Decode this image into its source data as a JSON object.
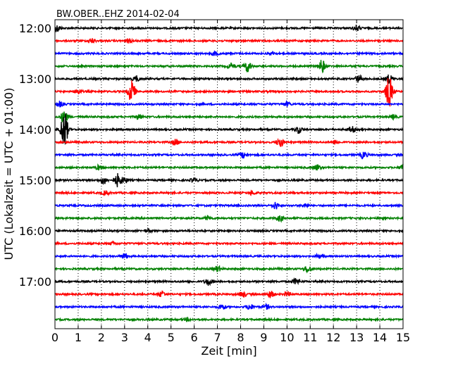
{
  "chart_data": {
    "type": "line",
    "title": "BW.OBER..EHZ 2014-02-04",
    "xlabel": "Zeit  [min]",
    "ylabel": "UTC (Lokalzeit = UTC + 01:00)",
    "xlim": [
      0,
      15
    ],
    "x_ticks": [
      0,
      1,
      2,
      3,
      4,
      5,
      6,
      7,
      8,
      9,
      10,
      11,
      12,
      13,
      14,
      15
    ],
    "y_ticks": [
      "12:00",
      "13:00",
      "14:00",
      "15:00",
      "16:00",
      "17:00"
    ],
    "grid": "vertical dotted lines at each minute",
    "trace_colors": [
      "#000000",
      "#ff0000",
      "#0000ff",
      "#008000"
    ],
    "traces": [
      {
        "start": "12:00",
        "events": [
          {
            "t": 0.1,
            "a": 5
          },
          {
            "t": 13.0,
            "a": 4
          }
        ]
      },
      {
        "start": "12:15",
        "events": [
          {
            "t": 1.6,
            "a": 3
          },
          {
            "t": 3.2,
            "a": 3
          }
        ]
      },
      {
        "start": "12:30",
        "events": [
          {
            "t": 6.9,
            "a": 3
          },
          {
            "t": 9.4,
            "a": 2
          }
        ]
      },
      {
        "start": "12:45",
        "events": [
          {
            "t": 8.3,
            "a": 8
          },
          {
            "t": 11.5,
            "a": 9
          },
          {
            "t": 7.6,
            "a": 4
          }
        ]
      },
      {
        "start": "13:00",
        "events": [
          {
            "t": 3.5,
            "a": 4
          },
          {
            "t": 13.1,
            "a": 5
          },
          {
            "t": 14.4,
            "a": 6
          }
        ]
      },
      {
        "start": "13:15",
        "events": [
          {
            "t": 3.3,
            "a": 16
          },
          {
            "t": 14.4,
            "a": 22
          },
          {
            "t": 1.0,
            "a": 4
          }
        ]
      },
      {
        "start": "13:30",
        "events": [
          {
            "t": 0.2,
            "a": 4
          },
          {
            "t": 10.0,
            "a": 3
          }
        ]
      },
      {
        "start": "13:45",
        "events": [
          {
            "t": 0.4,
            "a": 9
          },
          {
            "t": 3.6,
            "a": 3
          },
          {
            "t": 14.6,
            "a": 3
          }
        ]
      },
      {
        "start": "14:00",
        "events": [
          {
            "t": 0.4,
            "a": 28
          },
          {
            "t": 10.5,
            "a": 5
          },
          {
            "t": 12.8,
            "a": 4
          }
        ]
      },
      {
        "start": "14:15",
        "events": [
          {
            "t": 9.7,
            "a": 7
          },
          {
            "t": 5.2,
            "a": 4
          },
          {
            "t": 12.1,
            "a": 3
          }
        ]
      },
      {
        "start": "14:30",
        "events": [
          {
            "t": 8.1,
            "a": 4
          },
          {
            "t": 13.3,
            "a": 5
          }
        ]
      },
      {
        "start": "14:45",
        "events": [
          {
            "t": 11.3,
            "a": 4
          },
          {
            "t": 15.0,
            "a": 5
          },
          {
            "t": 1.9,
            "a": 3
          }
        ]
      },
      {
        "start": "15:00",
        "events": [
          {
            "t": 2.7,
            "a": 9
          },
          {
            "t": 2.1,
            "a": 5
          },
          {
            "t": 3.0,
            "a": 4
          },
          {
            "t": 6.0,
            "a": 3
          }
        ]
      },
      {
        "start": "15:15",
        "events": [
          {
            "t": 2.2,
            "a": 3
          },
          {
            "t": 8.5,
            "a": 3
          }
        ]
      },
      {
        "start": "15:30",
        "events": [
          {
            "t": 9.5,
            "a": 5
          },
          {
            "t": 10.8,
            "a": 3
          }
        ]
      },
      {
        "start": "15:45",
        "events": [
          {
            "t": 9.7,
            "a": 4
          },
          {
            "t": 6.6,
            "a": 3
          }
        ]
      },
      {
        "start": "16:00",
        "events": [
          {
            "t": 4.0,
            "a": 2
          }
        ]
      },
      {
        "start": "16:15",
        "events": [
          {
            "t": 2.5,
            "a": 2
          }
        ]
      },
      {
        "start": "16:30",
        "events": [
          {
            "t": 3.0,
            "a": 4
          },
          {
            "t": 11.4,
            "a": 3
          }
        ]
      },
      {
        "start": "16:45",
        "events": [
          {
            "t": 7.0,
            "a": 4
          },
          {
            "t": 10.9,
            "a": 5
          }
        ]
      },
      {
        "start": "17:00",
        "events": [
          {
            "t": 6.6,
            "a": 5
          },
          {
            "t": 10.4,
            "a": 4
          }
        ]
      },
      {
        "start": "17:15",
        "events": [
          {
            "t": 9.3,
            "a": 5
          },
          {
            "t": 4.6,
            "a": 4
          },
          {
            "t": 8.1,
            "a": 4
          },
          {
            "t": 10.0,
            "a": 3
          }
        ]
      },
      {
        "start": "17:30",
        "events": [
          {
            "t": 7.2,
            "a": 4
          },
          {
            "t": 8.4,
            "a": 4
          },
          {
            "t": 9.1,
            "a": 3
          }
        ]
      },
      {
        "start": "17:45",
        "events": [
          {
            "t": 5.7,
            "a": 2
          }
        ]
      }
    ]
  }
}
